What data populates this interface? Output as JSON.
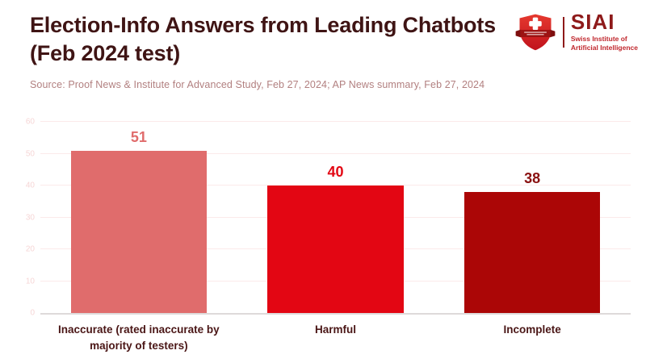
{
  "header": {
    "title": "Election-Info Answers from Leading Chatbots (Feb 2024 test)",
    "title_color": "#3f1414",
    "source": "Source: Proof News & Institute for Advanced Study, Feb 27, 2024; AP News summary, Feb 27, 2024",
    "source_color": "#b28080"
  },
  "logo": {
    "acronym": "SIAI",
    "name_line1": "Swiss Institute of",
    "name_line2": "Artificial Intelligence",
    "acronym_color": "#8e1a1a",
    "name_color": "#c0272d",
    "shield_icon": "swiss-shield-icon"
  },
  "chart_data": {
    "type": "bar",
    "title": "Election-Info Answers from Leading Chatbots (Feb 2024 test)",
    "categories": [
      "Inaccurate (rated inaccurate by majority of testers)",
      "Harmful",
      "Incomplete"
    ],
    "values": [
      51,
      40,
      38
    ],
    "bar_colors": [
      "#e06c6c",
      "#e30613",
      "#ab0606"
    ],
    "value_label_colors": [
      "#e06c6c",
      "#e30613",
      "#8a1111"
    ],
    "y_ticks": [
      0,
      10,
      20,
      30,
      40,
      50,
      60
    ],
    "ylim": [
      0,
      60
    ],
    "xlabel": "",
    "ylabel": "",
    "grid": true,
    "legend_position": "none",
    "gridline_color": "#fbeaea",
    "baseline_color": "#dedada",
    "tick_label_color": "#f6d6d6",
    "category_label_color": "#4a1616"
  }
}
